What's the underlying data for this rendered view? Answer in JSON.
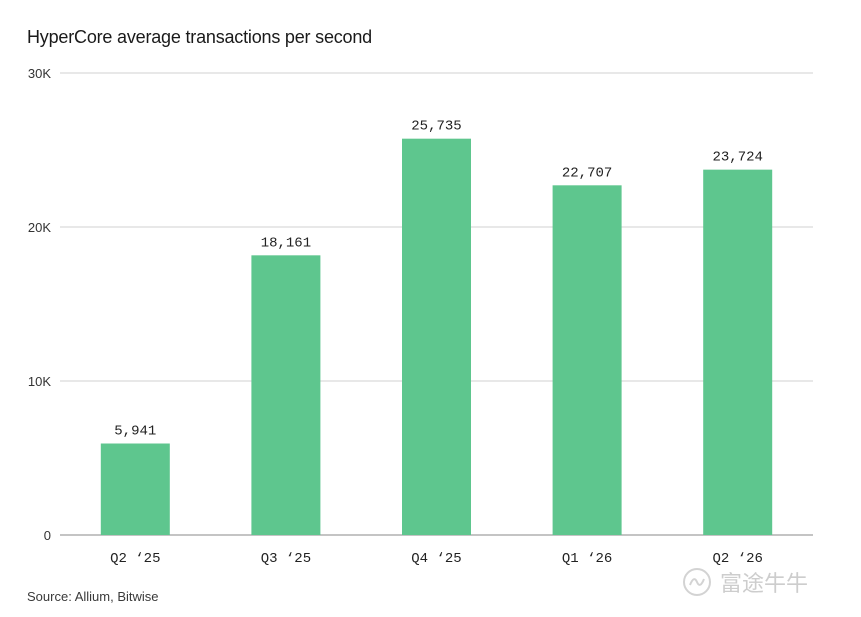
{
  "chart_data": {
    "type": "bar",
    "title": "HyperCore average transactions per second",
    "categories": [
      "Q2 ‘25",
      "Q3 ‘25",
      "Q4 ‘25",
      "Q1 ‘26",
      "Q2 ‘26"
    ],
    "values": [
      5941,
      18161,
      25735,
      22707,
      23724
    ],
    "value_labels": [
      "5,941",
      "18,161",
      "25,735",
      "22,707",
      "23,724"
    ],
    "yticks": [
      0,
      10000,
      20000,
      30000
    ],
    "ytick_labels": [
      "0",
      "10K",
      "20K",
      "30K"
    ],
    "ylim": [
      0,
      30000
    ],
    "xlabel": "",
    "ylabel": "",
    "grid": true,
    "bar_color": "#5ec68e",
    "grid_color": "#d0d0d0"
  },
  "source": "Source: Allium, Bitwise",
  "watermark": {
    "icon": "niuniu-logo-icon",
    "text": "富途牛牛"
  }
}
